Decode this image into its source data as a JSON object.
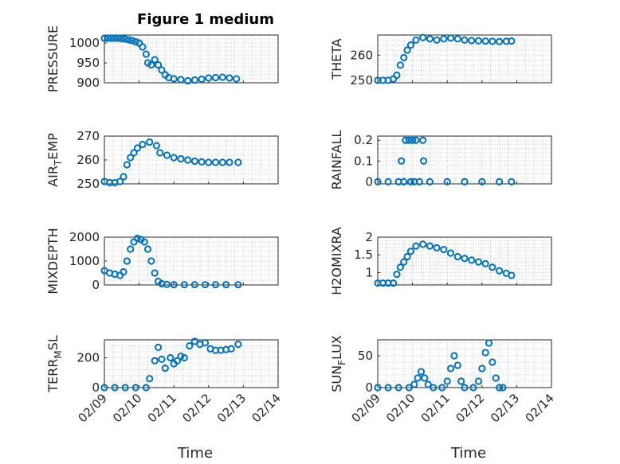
{
  "figure": {
    "title": "Figure 1 medium",
    "marker_color": "#0072bd"
  },
  "chart_data": [
    {
      "type": "scatter",
      "key": "pressure",
      "ylabel": "PRESSURE",
      "xlabel": "",
      "xlim": [
        "02/09",
        "02/14"
      ],
      "ylim": [
        900,
        1020
      ],
      "yticks": [
        900,
        950,
        1000
      ],
      "xticks": [
        "02/09",
        "02/10",
        "02/11",
        "02/12",
        "02/13",
        "02/14"
      ],
      "grid": true,
      "points": [
        [
          0,
          1012
        ],
        [
          0.1,
          1012
        ],
        [
          0.2,
          1012
        ],
        [
          0.3,
          1012
        ],
        [
          0.4,
          1012
        ],
        [
          0.5,
          1011
        ],
        [
          0.6,
          1010
        ],
        [
          0.7,
          1008
        ],
        [
          0.8,
          1006
        ],
        [
          0.9,
          1003
        ],
        [
          1.0,
          1000
        ],
        [
          1.1,
          990
        ],
        [
          1.2,
          972
        ],
        [
          1.25,
          950
        ],
        [
          1.35,
          945
        ],
        [
          1.45,
          958
        ],
        [
          1.55,
          945
        ],
        [
          1.65,
          932
        ],
        [
          1.75,
          920
        ],
        [
          1.85,
          913
        ],
        [
          2.0,
          910
        ],
        [
          2.2,
          908
        ],
        [
          2.4,
          905
        ],
        [
          2.6,
          907
        ],
        [
          2.8,
          909
        ],
        [
          3.0,
          912
        ],
        [
          3.2,
          913
        ],
        [
          3.4,
          914
        ],
        [
          3.6,
          912
        ],
        [
          3.8,
          910
        ]
      ]
    },
    {
      "type": "scatter",
      "key": "theta",
      "ylabel": "THETA",
      "xlabel": "",
      "xlim": [
        "02/09",
        "02/14"
      ],
      "ylim": [
        249,
        268
      ],
      "yticks": [
        250,
        260
      ],
      "xticks": [
        "02/09",
        "02/10",
        "02/11",
        "02/12",
        "02/13",
        "02/14"
      ],
      "grid": true,
      "points": [
        [
          0,
          250
        ],
        [
          0.15,
          250
        ],
        [
          0.3,
          250
        ],
        [
          0.45,
          250.5
        ],
        [
          0.55,
          252
        ],
        [
          0.65,
          256
        ],
        [
          0.75,
          259
        ],
        [
          0.85,
          262
        ],
        [
          0.95,
          264
        ],
        [
          1.1,
          266
        ],
        [
          1.3,
          267
        ],
        [
          1.5,
          266.5
        ],
        [
          1.7,
          266
        ],
        [
          1.9,
          266.5
        ],
        [
          2.1,
          266.8
        ],
        [
          2.3,
          266.5
        ],
        [
          2.5,
          266
        ],
        [
          2.7,
          265.8
        ],
        [
          2.9,
          265.7
        ],
        [
          3.1,
          265.6
        ],
        [
          3.3,
          265.5
        ],
        [
          3.5,
          265.4
        ],
        [
          3.7,
          265.5
        ],
        [
          3.85,
          265.6
        ]
      ]
    },
    {
      "type": "scatter",
      "key": "airtemp",
      "ylabel": "AIR_TEMP",
      "xlabel": "",
      "xlim": [
        "02/09",
        "02/14"
      ],
      "ylim": [
        250,
        270
      ],
      "yticks": [
        250,
        260,
        270
      ],
      "xticks": [
        "02/09",
        "02/10",
        "02/11",
        "02/12",
        "02/13",
        "02/14"
      ],
      "grid": true,
      "points": [
        [
          0,
          251
        ],
        [
          0.15,
          250.5
        ],
        [
          0.3,
          250.5
        ],
        [
          0.45,
          251
        ],
        [
          0.55,
          253
        ],
        [
          0.65,
          258
        ],
        [
          0.75,
          261
        ],
        [
          0.85,
          263
        ],
        [
          0.95,
          265
        ],
        [
          1.1,
          266.5
        ],
        [
          1.3,
          267.5
        ],
        [
          1.5,
          266
        ],
        [
          1.6,
          263
        ],
        [
          1.8,
          262
        ],
        [
          2.0,
          261
        ],
        [
          2.2,
          260.5
        ],
        [
          2.4,
          260
        ],
        [
          2.6,
          259.5
        ],
        [
          2.8,
          259.2
        ],
        [
          3.0,
          259
        ],
        [
          3.2,
          259
        ],
        [
          3.4,
          259
        ],
        [
          3.6,
          259
        ],
        [
          3.85,
          259
        ]
      ]
    },
    {
      "type": "scatter",
      "key": "rainfall",
      "ylabel": "RAINFALL",
      "xlabel": "",
      "xlim": [
        "02/09",
        "02/14"
      ],
      "ylim": [
        -0.01,
        0.22
      ],
      "yticks": [
        0,
        0.1,
        0.2
      ],
      "xticks": [
        "02/09",
        "02/10",
        "02/11",
        "02/12",
        "02/13",
        "02/14"
      ],
      "grid": true,
      "points": [
        [
          0,
          0
        ],
        [
          0.3,
          0
        ],
        [
          0.6,
          0
        ],
        [
          0.68,
          0.1
        ],
        [
          0.75,
          0
        ],
        [
          0.8,
          0.2
        ],
        [
          0.9,
          0.2
        ],
        [
          0.95,
          0
        ],
        [
          1.0,
          0.2
        ],
        [
          1.05,
          0
        ],
        [
          1.1,
          0.2
        ],
        [
          1.2,
          0
        ],
        [
          1.3,
          0.2
        ],
        [
          1.32,
          0.1
        ],
        [
          1.5,
          0
        ],
        [
          2.0,
          0
        ],
        [
          2.5,
          0
        ],
        [
          3.0,
          0
        ],
        [
          3.5,
          0
        ],
        [
          3.85,
          0
        ]
      ]
    },
    {
      "type": "scatter",
      "key": "mixdepth",
      "ylabel": "MIXDEPTH",
      "xlabel": "",
      "xlim": [
        "02/09",
        "02/14"
      ],
      "ylim": [
        0,
        2000
      ],
      "yticks": [
        0,
        1000,
        2000
      ],
      "xticks": [
        "02/09",
        "02/10",
        "02/11",
        "02/12",
        "02/13",
        "02/14"
      ],
      "grid": true,
      "points": [
        [
          0,
          600
        ],
        [
          0.15,
          500
        ],
        [
          0.3,
          450
        ],
        [
          0.45,
          400
        ],
        [
          0.55,
          550
        ],
        [
          0.65,
          1000
        ],
        [
          0.75,
          1500
        ],
        [
          0.85,
          1800
        ],
        [
          0.95,
          1950
        ],
        [
          1.05,
          1900
        ],
        [
          1.15,
          1800
        ],
        [
          1.25,
          1500
        ],
        [
          1.35,
          1000
        ],
        [
          1.45,
          500
        ],
        [
          1.55,
          150
        ],
        [
          1.65,
          50
        ],
        [
          1.8,
          20
        ],
        [
          2.0,
          10
        ],
        [
          2.3,
          10
        ],
        [
          2.6,
          10
        ],
        [
          2.9,
          10
        ],
        [
          3.2,
          10
        ],
        [
          3.5,
          10
        ],
        [
          3.85,
          10
        ]
      ]
    },
    {
      "type": "scatter",
      "key": "h2omixra",
      "ylabel": "H2OMIXRA",
      "xlabel": "",
      "xlim": [
        "02/09",
        "02/14"
      ],
      "ylim": [
        0.65,
        2.0
      ],
      "yticks": [
        1,
        1.5,
        2
      ],
      "xticks": [
        "02/09",
        "02/10",
        "02/11",
        "02/12",
        "02/13",
        "02/14"
      ],
      "grid": true,
      "points": [
        [
          0,
          0.7
        ],
        [
          0.15,
          0.7
        ],
        [
          0.3,
          0.7
        ],
        [
          0.45,
          0.7
        ],
        [
          0.55,
          0.95
        ],
        [
          0.65,
          1.15
        ],
        [
          0.75,
          1.3
        ],
        [
          0.85,
          1.45
        ],
        [
          0.95,
          1.6
        ],
        [
          1.1,
          1.75
        ],
        [
          1.3,
          1.8
        ],
        [
          1.5,
          1.75
        ],
        [
          1.7,
          1.7
        ],
        [
          1.9,
          1.65
        ],
        [
          2.1,
          1.55
        ],
        [
          2.3,
          1.45
        ],
        [
          2.5,
          1.4
        ],
        [
          2.7,
          1.35
        ],
        [
          2.9,
          1.3
        ],
        [
          3.1,
          1.25
        ],
        [
          3.3,
          1.15
        ],
        [
          3.5,
          1.05
        ],
        [
          3.7,
          0.98
        ],
        [
          3.85,
          0.92
        ]
      ]
    },
    {
      "type": "scatter",
      "key": "terrmsl",
      "ylabel": "TERR_MSL",
      "xlabel": "Time",
      "xlim": [
        "02/09",
        "02/14"
      ],
      "ylim": [
        0,
        320
      ],
      "yticks": [
        0,
        200
      ],
      "xticks": [
        "02/09",
        "02/10",
        "02/11",
        "02/12",
        "02/13",
        "02/14"
      ],
      "grid": true,
      "points": [
        [
          0,
          0
        ],
        [
          0.3,
          0
        ],
        [
          0.6,
          0
        ],
        [
          0.9,
          0
        ],
        [
          1.2,
          0
        ],
        [
          1.3,
          60
        ],
        [
          1.45,
          180
        ],
        [
          1.55,
          270
        ],
        [
          1.65,
          190
        ],
        [
          1.75,
          130
        ],
        [
          1.9,
          200
        ],
        [
          2.0,
          160
        ],
        [
          2.1,
          180
        ],
        [
          2.2,
          210
        ],
        [
          2.3,
          200
        ],
        [
          2.45,
          280
        ],
        [
          2.6,
          310
        ],
        [
          2.75,
          290
        ],
        [
          2.9,
          300
        ],
        [
          3.05,
          260
        ],
        [
          3.2,
          250
        ],
        [
          3.35,
          250
        ],
        [
          3.5,
          255
        ],
        [
          3.65,
          260
        ],
        [
          3.85,
          290
        ]
      ]
    },
    {
      "type": "scatter",
      "key": "sunflux",
      "ylabel": "SUN_FLUX",
      "xlabel": "Time",
      "xlim": [
        "02/09",
        "02/14"
      ],
      "ylim": [
        0,
        75
      ],
      "yticks": [
        0,
        50
      ],
      "xticks": [
        "02/09",
        "02/10",
        "02/11",
        "02/12",
        "02/13",
        "02/14"
      ],
      "grid": true,
      "points": [
        [
          0,
          0
        ],
        [
          0.3,
          0
        ],
        [
          0.6,
          0
        ],
        [
          0.9,
          0
        ],
        [
          1.05,
          5
        ],
        [
          1.15,
          15
        ],
        [
          1.25,
          25
        ],
        [
          1.35,
          15
        ],
        [
          1.45,
          5
        ],
        [
          1.6,
          0
        ],
        [
          1.85,
          0
        ],
        [
          2.0,
          10
        ],
        [
          2.1,
          30
        ],
        [
          2.2,
          50
        ],
        [
          2.3,
          35
        ],
        [
          2.4,
          10
        ],
        [
          2.5,
          0
        ],
        [
          2.75,
          0
        ],
        [
          2.9,
          10
        ],
        [
          3.0,
          30
        ],
        [
          3.1,
          55
        ],
        [
          3.2,
          70
        ],
        [
          3.3,
          40
        ],
        [
          3.4,
          15
        ],
        [
          3.5,
          0
        ],
        [
          3.6,
          0
        ]
      ]
    }
  ]
}
